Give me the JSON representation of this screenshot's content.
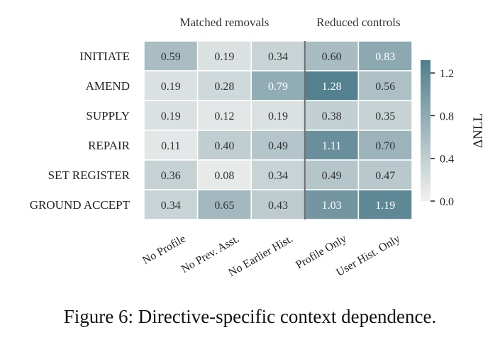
{
  "chart_data": {
    "type": "heatmap",
    "group_labels": [
      "Matched removals",
      "Reduced controls"
    ],
    "groups": [
      {
        "label_index": 0,
        "columns": [
          0,
          1,
          2
        ]
      },
      {
        "label_index": 1,
        "columns": [
          3,
          4
        ]
      }
    ],
    "rows": [
      "INITIATE",
      "AMEND",
      "SUPPLY",
      "REPAIR",
      "SET REGISTER",
      "GROUND ACCEPT"
    ],
    "columns": [
      "No Profile",
      "No Prev. Asst.",
      "No Earlier Hist.",
      "Profile Only",
      "User Hist. Only"
    ],
    "values": [
      [
        0.59,
        0.19,
        0.34,
        0.6,
        0.83
      ],
      [
        0.19,
        0.28,
        0.79,
        1.28,
        0.56
      ],
      [
        0.19,
        0.12,
        0.19,
        0.38,
        0.35
      ],
      [
        0.11,
        0.4,
        0.49,
        1.11,
        0.7
      ],
      [
        0.36,
        0.08,
        0.34,
        0.49,
        0.47
      ],
      [
        0.34,
        0.65,
        0.43,
        1.03,
        1.19
      ]
    ],
    "colorbar": {
      "label": "ΔNLL",
      "ticks": [
        0.0,
        0.4,
        0.8,
        1.2
      ],
      "tick_labels": [
        "0.0",
        "0.4",
        "0.8",
        "1.2"
      ],
      "range": [
        0.0,
        1.32
      ],
      "color_low": "#f2f1ef",
      "color_high": "#4f7d8c"
    },
    "separator_after_column": 2
  },
  "caption": "Figure 6: Directive-specific context dependence."
}
